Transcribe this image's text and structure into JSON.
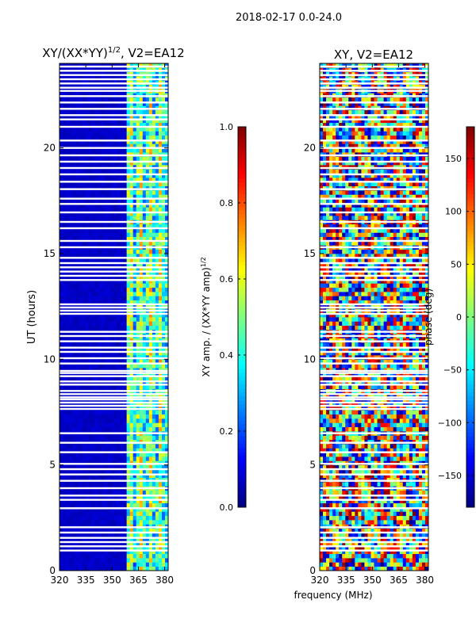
{
  "suptitle": "2018-02-17 0.0-24.0",
  "shared_xlabel": "frequency (MHz)",
  "colormap": [
    "#00007f",
    "#0000ff",
    "#007fff",
    "#00ffff",
    "#7fff7f",
    "#ffff00",
    "#ff7f00",
    "#ff0000",
    "#7f0000"
  ],
  "chart_data": [
    {
      "type": "heatmap",
      "title_main": "XY/(XX*YY)",
      "title_sup": "1/2",
      "title_tail": ", V2=EA12",
      "ylabel": "UT (hours)",
      "xlim": [
        320,
        382
      ],
      "ylim": [
        0,
        24
      ],
      "xticks": [
        320,
        335,
        350,
        365,
        380
      ],
      "yticks": [
        0,
        5,
        10,
        15,
        20
      ],
      "colorbar": {
        "label_main": "XY amp. / (XX*YY amp)",
        "label_sup": "1/2",
        "range": [
          0.0,
          1.0
        ],
        "ticks": [
          "0.0",
          "0.2",
          "0.4",
          "0.6",
          "0.8",
          "1.0"
        ]
      },
      "description_values": {
        "low_band_mhz": [
          320,
          359
        ],
        "low_band_level": 0.05,
        "high_band_mhz": [
          359,
          382
        ],
        "high_band_level_range": [
          0.15,
          0.75
        ]
      }
    },
    {
      "type": "heatmap",
      "title_main": "XY, V2=EA12",
      "ylabel": "",
      "xlim": [
        320,
        382
      ],
      "ylim": [
        0,
        24
      ],
      "xticks": [
        320,
        335,
        350,
        365,
        380
      ],
      "yticks": [
        0,
        5,
        10,
        15,
        20
      ],
      "colorbar": {
        "label_main": "phase (deg)",
        "range": [
          -180,
          180
        ],
        "ticks": [
          "−150",
          "−100",
          "−50",
          "0",
          "50",
          "100",
          "150"
        ]
      }
    }
  ]
}
